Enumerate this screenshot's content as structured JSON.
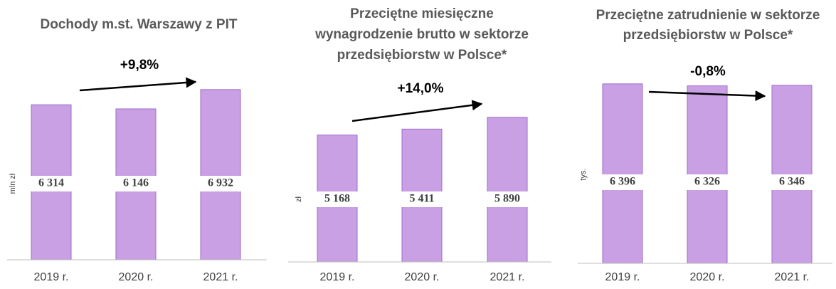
{
  "chart_data": [
    {
      "type": "bar",
      "title": [
        "Dochody m.st. Warszawy z PIT"
      ],
      "ylabel": "mln zł",
      "annotation": "+9,8%",
      "categories": [
        "2019 r.",
        "2020 r.",
        "2021 r."
      ],
      "values": [
        6314,
        6146,
        6932
      ],
      "value_labels": [
        "6 314",
        "6 146",
        "6 932"
      ],
      "color": "#c8a0e3",
      "ylim": [
        0,
        8000
      ]
    },
    {
      "type": "bar",
      "title": [
        "Przeciętne miesięczne",
        "wynagrodzenie brutto  w sektorze",
        "przedsiębiorstw w Polsce*"
      ],
      "ylabel": "zł",
      "annotation": "+14,0%",
      "categories": [
        "2019 r.",
        "2020 r.",
        "2021 r."
      ],
      "values": [
        5168,
        5411,
        5890
      ],
      "value_labels": [
        "5 168",
        "5 411",
        "5 890"
      ],
      "color": "#c8a0e3",
      "ylim": [
        0,
        8000
      ]
    },
    {
      "type": "bar",
      "title": [
        "Przeciętne zatrudnienie w sektorze",
        "przedsiębiorstw w Polsce*"
      ],
      "ylabel": "tys.",
      "annotation": "-0,8%",
      "categories": [
        "2019 r.",
        "2020 r.",
        "2021 r."
      ],
      "values": [
        6396,
        6326,
        6346
      ],
      "value_labels": [
        "6 396",
        "6 326",
        "6 346"
      ],
      "color": "#c8a0e3",
      "ylim": [
        0,
        7000
      ]
    }
  ]
}
